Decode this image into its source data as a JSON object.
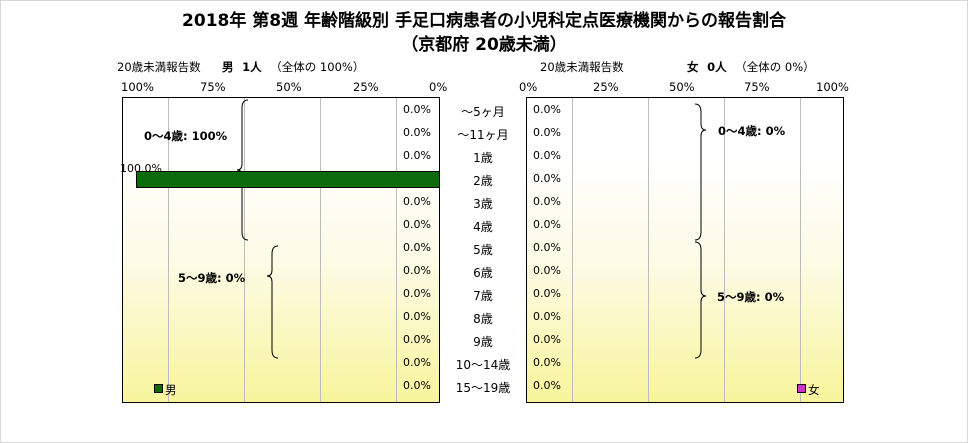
{
  "title_line1": "2018年 第8週 年齢階級別 手足口病患者の小児科定点医療機関からの報告割合",
  "title_line2": "（京都府 20歳未満）",
  "left_header": {
    "caption": "20歳未満報告数",
    "sex": "男",
    "count": "1人",
    "share": "（全体の  100%）"
  },
  "right_header": {
    "caption": "20歳未満報告数",
    "sex": "女",
    "count": "0人",
    "share": "（全体の   0%）"
  },
  "left_ticks": [
    "100%",
    "75%",
    "50%",
    "25%",
    "0%"
  ],
  "right_ticks": [
    "0%",
    "25%",
    "50%",
    "75%",
    "100%"
  ],
  "legend": {
    "male": "男",
    "female": "女"
  },
  "groups": {
    "male_0_4": "0～4歳: 100%",
    "male_5_9": "5～9歳: 0%",
    "female_0_4": "0～4歳: 0%",
    "female_5_9": "5～9歳: 0%"
  },
  "chart_data": {
    "type": "bar",
    "orientation": "horizontal",
    "layout": "population pyramid (back-to-back)",
    "categories": [
      "～5ヶ月",
      "～11ヶ月",
      "1歳",
      "2歳",
      "3歳",
      "4歳",
      "5歳",
      "6歳",
      "7歳",
      "8歳",
      "9歳",
      "10～14歳",
      "15～19歳"
    ],
    "series": [
      {
        "name": "男",
        "color": "#0a6b0a",
        "values": [
          0,
          0,
          0,
          100,
          0,
          0,
          0,
          0,
          0,
          0,
          0,
          0,
          0
        ],
        "labels": [
          "0.0%",
          "0.0%",
          "0.0%",
          "100.0%",
          "0.0%",
          "0.0%",
          "0.0%",
          "0.0%",
          "0.0%",
          "0.0%",
          "0.0%",
          "0.0%",
          "0.0%"
        ]
      },
      {
        "name": "女",
        "color": "#cc33cc",
        "values": [
          0,
          0,
          0,
          0,
          0,
          0,
          0,
          0,
          0,
          0,
          0,
          0,
          0
        ],
        "labels": [
          "0.0%",
          "0.0%",
          "0.0%",
          "0.0%",
          "0.0%",
          "0.0%",
          "0.0%",
          "0.0%",
          "0.0%",
          "0.0%",
          "0.0%",
          "0.0%",
          "0.0%"
        ]
      }
    ],
    "xlim": [
      0,
      100
    ],
    "x_unit": "%",
    "grid": true
  }
}
